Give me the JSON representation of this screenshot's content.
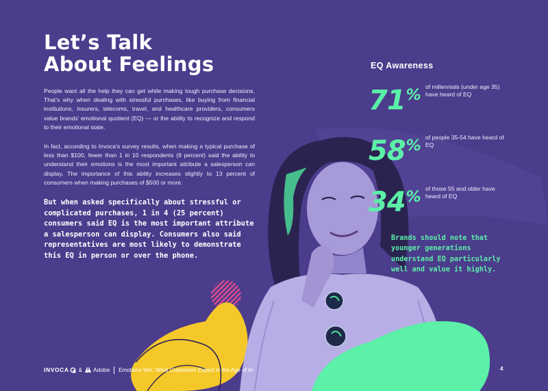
{
  "title_line1": "Let’s Talk",
  "title_line2": "About Feelings",
  "paragraph1": "People want all the help they can get while making tough purchase decisions. That’s why when dealing with stressful purchases, like buying from financial institutions, insurers, telecoms, travel, and healthcare providers, consumers value brands’ emotional quotient (EQ) — or the ability to recognize and respond to their emotional state.",
  "paragraph2": "In fact, according to Invoca’s survey results, when making a typical purchase of less than $100, fewer than 1 in 10 respondents (9 percent) said the ability to understand their emotions is the most important attribute a salesperson can display. The importance of this ability increases slightly to 13 percent of consumers when making purchases of $500 or more.",
  "callout": "But when asked specifically about stressful or complicated purchases, 1 in 4 (25 percent) consumers said EQ is the most important attribute a salesperson can display. Consumers also said representatives are most likely to demonstrate this EQ in person or over the phone.",
  "eq_title": "EQ Awareness",
  "stats": [
    {
      "value": "71",
      "unit": "%",
      "desc": "of millennials (under age 35) have heard of EQ"
    },
    {
      "value": "58",
      "unit": "%",
      "desc": "of people 35-54 have heard of EQ"
    },
    {
      "value": "34",
      "unit": "%",
      "desc": "of those 55 and older have heard of EQ"
    }
  ],
  "note": "Brands should note that younger generations understand EQ particularly well and value it highly.",
  "footer": {
    "brand": "INVOCA",
    "amp": "&",
    "adobe": "Adobe",
    "report_title": "Emotions Win: What Customers Expect in the Age of AI",
    "page_number": "4"
  },
  "colors": {
    "background": "#4b3c8c",
    "accent_green": "#5cf0a8",
    "accent_yellow": "#f5c82a",
    "accent_pink": "#e04a8c"
  },
  "icons": [
    "invoca-logo-icon",
    "adobe-logo-icon"
  ]
}
